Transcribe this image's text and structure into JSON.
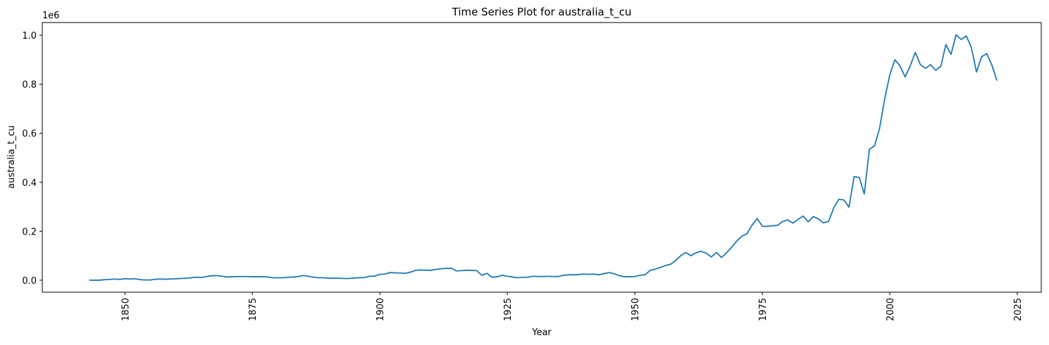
{
  "chart_data": {
    "type": "line",
    "title": "Time Series Plot for australia_t_cu",
    "x_label": "Year",
    "y_label": "australia_t_cu",
    "y_offset_label": "1e6",
    "color": "#1f77b4",
    "grid": false,
    "x": [
      1843,
      1844,
      1845,
      1846,
      1847,
      1848,
      1849,
      1850,
      1851,
      1852,
      1853,
      1854,
      1855,
      1856,
      1857,
      1858,
      1859,
      1860,
      1861,
      1862,
      1863,
      1864,
      1865,
      1866,
      1867,
      1868,
      1869,
      1870,
      1871,
      1872,
      1873,
      1874,
      1875,
      1876,
      1877,
      1878,
      1879,
      1880,
      1881,
      1882,
      1883,
      1884,
      1885,
      1886,
      1887,
      1888,
      1889,
      1890,
      1891,
      1892,
      1893,
      1894,
      1895,
      1896,
      1897,
      1898,
      1899,
      1900,
      1901,
      1902,
      1903,
      1904,
      1905,
      1906,
      1907,
      1908,
      1909,
      1910,
      1911,
      1912,
      1913,
      1914,
      1915,
      1916,
      1917,
      1918,
      1919,
      1920,
      1921,
      1922,
      1923,
      1924,
      1925,
      1926,
      1927,
      1928,
      1929,
      1930,
      1931,
      1932,
      1933,
      1934,
      1935,
      1936,
      1937,
      1938,
      1939,
      1940,
      1941,
      1942,
      1943,
      1944,
      1945,
      1946,
      1947,
      1948,
      1949,
      1950,
      1951,
      1952,
      1953,
      1954,
      1955,
      1956,
      1957,
      1958,
      1959,
      1960,
      1961,
      1962,
      1963,
      1964,
      1965,
      1966,
      1967,
      1968,
      1969,
      1970,
      1971,
      1972,
      1973,
      1974,
      1975,
      1976,
      1977,
      1978,
      1979,
      1980,
      1981,
      1982,
      1983,
      1984,
      1985,
      1986,
      1987,
      1988,
      1989,
      1990,
      1991,
      1992,
      1993,
      1994,
      1995,
      1996,
      1997,
      1998,
      1999,
      2000,
      2001,
      2002,
      2003,
      2004,
      2005,
      2006,
      2007,
      2008,
      2009,
      2010,
      2011,
      2012,
      2013,
      2014,
      2015,
      2016,
      2017,
      2018,
      2019,
      2020,
      2021
    ],
    "values": [
      0,
      0,
      0,
      0.002,
      0.003,
      0.005,
      0.003,
      0.006,
      0.005,
      0.006,
      0.002,
      0.001,
      0.001,
      0.004,
      0.005,
      0.004,
      0.005,
      0.006,
      0.007,
      0.008,
      0.01,
      0.012,
      0.011,
      0.015,
      0.018,
      0.019,
      0.016,
      0.013,
      0.014,
      0.015,
      0.015,
      0.015,
      0.014,
      0.014,
      0.014,
      0.013,
      0.01,
      0.01,
      0.01,
      0.012,
      0.013,
      0.015,
      0.019,
      0.016,
      0.012,
      0.01,
      0.01,
      0.008,
      0.008,
      0.008,
      0.007,
      0.007,
      0.009,
      0.01,
      0.011,
      0.016,
      0.017,
      0.024,
      0.025,
      0.031,
      0.03,
      0.029,
      0.028,
      0.033,
      0.04,
      0.042,
      0.041,
      0.04,
      0.044,
      0.047,
      0.048,
      0.049,
      0.038,
      0.039,
      0.041,
      0.04,
      0.039,
      0.02,
      0.028,
      0.012,
      0.014,
      0.02,
      0.016,
      0.013,
      0.01,
      0.012,
      0.012,
      0.016,
      0.015,
      0.015,
      0.016,
      0.015,
      0.015,
      0.02,
      0.022,
      0.022,
      0.023,
      0.025,
      0.024,
      0.025,
      0.022,
      0.027,
      0.031,
      0.026,
      0.018,
      0.014,
      0.014,
      0.015,
      0.02,
      0.022,
      0.04,
      0.045,
      0.052,
      0.06,
      0.065,
      0.08,
      0.1,
      0.113,
      0.1,
      0.112,
      0.118,
      0.11,
      0.095,
      0.113,
      0.093,
      0.112,
      0.135,
      0.16,
      0.18,
      0.19,
      0.225,
      0.252,
      0.22,
      0.22,
      0.222,
      0.224,
      0.24,
      0.246,
      0.233,
      0.248,
      0.262,
      0.238,
      0.26,
      0.25,
      0.234,
      0.24,
      0.295,
      0.33,
      0.328,
      0.298,
      0.423,
      0.42,
      0.352,
      0.535,
      0.548,
      0.62,
      0.74,
      0.838,
      0.9,
      0.875,
      0.83,
      0.875,
      0.93,
      0.88,
      0.865,
      0.88,
      0.857,
      0.873,
      0.962,
      0.922,
      1.002,
      0.983,
      0.997,
      0.95,
      0.85,
      0.912,
      0.925,
      0.88,
      0.815
    ],
    "xlim": [
      1833.8,
      2029.7
    ],
    "xticks": [
      1850,
      1875,
      1900,
      1925,
      1950,
      1975,
      2000,
      2025
    ],
    "ylim": [
      -0.049,
      1.052
    ],
    "yticks": [
      {
        "value": 0,
        "label": "0.0"
      },
      {
        "value": 0.2,
        "label": "0.2"
      },
      {
        "value": 0.4,
        "label": "0.4"
      },
      {
        "value": 0.6,
        "label": "0.6"
      },
      {
        "value": 0.8,
        "label": "0.8"
      },
      {
        "value": 1,
        "label": "1.0"
      }
    ]
  }
}
